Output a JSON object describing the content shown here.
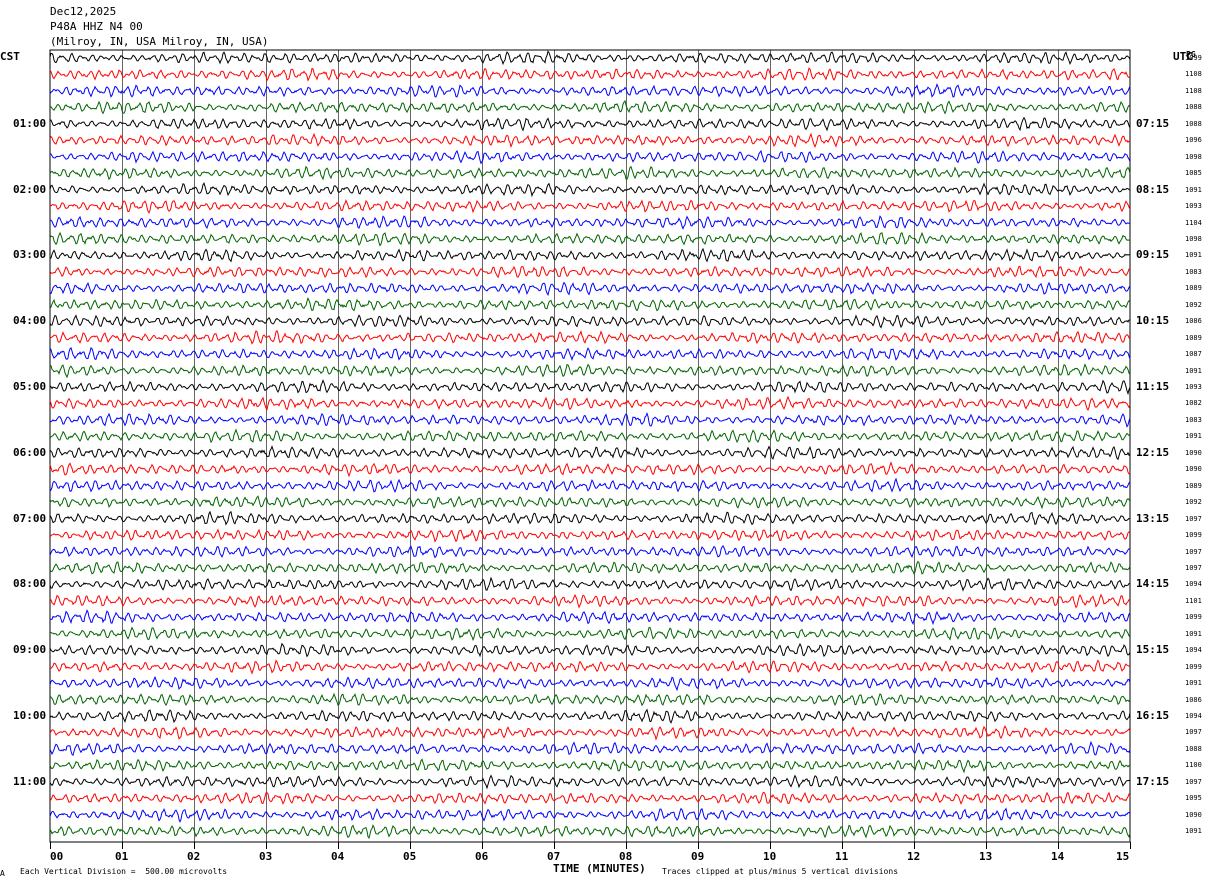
{
  "header": {
    "date": "Dec12,2025",
    "station": "P48A HHZ N4 00",
    "location": "(Milroy, IN, USA Milroy, IN, USA)"
  },
  "left_tz": "CST",
  "right_tz": "UTC",
  "pg_label": "PG",
  "footer": {
    "scale_note": "Each Vertical Division =  500.00 microvolts",
    "clip_note": "Traces clipped at plus/minus 5 vertical divisions",
    "corner_mark": "A"
  },
  "colors": {
    "trace_cycle": [
      "#000000",
      "#ff0000",
      "#0000ff",
      "#006400"
    ],
    "grid": "#000000"
  },
  "chart_data": {
    "type": "line",
    "xlabel": "TIME (MINUTES)",
    "x_ticks": [
      "00",
      "01",
      "02",
      "03",
      "04",
      "05",
      "06",
      "07",
      "08",
      "09",
      "10",
      "11",
      "12",
      "13",
      "14",
      "15"
    ],
    "xlim": [
      0,
      15
    ],
    "row_count": 48,
    "left_hour_labels": [
      {
        "row": 4,
        "label": "01:00"
      },
      {
        "row": 8,
        "label": "02:00"
      },
      {
        "row": 12,
        "label": "03:00"
      },
      {
        "row": 16,
        "label": "04:00"
      },
      {
        "row": 20,
        "label": "05:00"
      },
      {
        "row": 24,
        "label": "06:00"
      },
      {
        "row": 28,
        "label": "07:00"
      },
      {
        "row": 32,
        "label": "08:00"
      },
      {
        "row": 36,
        "label": "09:00"
      },
      {
        "row": 40,
        "label": "10:00"
      },
      {
        "row": 44,
        "label": "11:00"
      }
    ],
    "right_hour_labels": [
      {
        "row": 4,
        "label": "07:15"
      },
      {
        "row": 8,
        "label": "08:15"
      },
      {
        "row": 12,
        "label": "09:15"
      },
      {
        "row": 16,
        "label": "10:15"
      },
      {
        "row": 20,
        "label": "11:15"
      },
      {
        "row": 24,
        "label": "12:15"
      },
      {
        "row": 28,
        "label": "13:15"
      },
      {
        "row": 32,
        "label": "14:15"
      },
      {
        "row": 36,
        "label": "15:15"
      },
      {
        "row": 40,
        "label": "16:15"
      },
      {
        "row": 44,
        "label": "17:15"
      }
    ],
    "row_values": [
      "1099",
      "1108",
      "1108",
      "1088",
      "1088",
      "1096",
      "1098",
      "1085",
      "1091",
      "1093",
      "1104",
      "1098",
      "1091",
      "1083",
      "1089",
      "1092",
      "1086",
      "1089",
      "1087",
      "1091",
      "1093",
      "1082",
      "1083",
      "1091",
      "1090",
      "1090",
      "1089",
      "1092",
      "1097",
      "1099",
      "1097",
      "1097",
      "1094",
      "1101",
      "1099",
      "1091",
      "1094",
      "1099",
      "1091",
      "1086",
      "1094",
      "1097",
      "1088",
      "1100",
      "1097",
      "1095",
      "1090",
      "1091"
    ]
  }
}
